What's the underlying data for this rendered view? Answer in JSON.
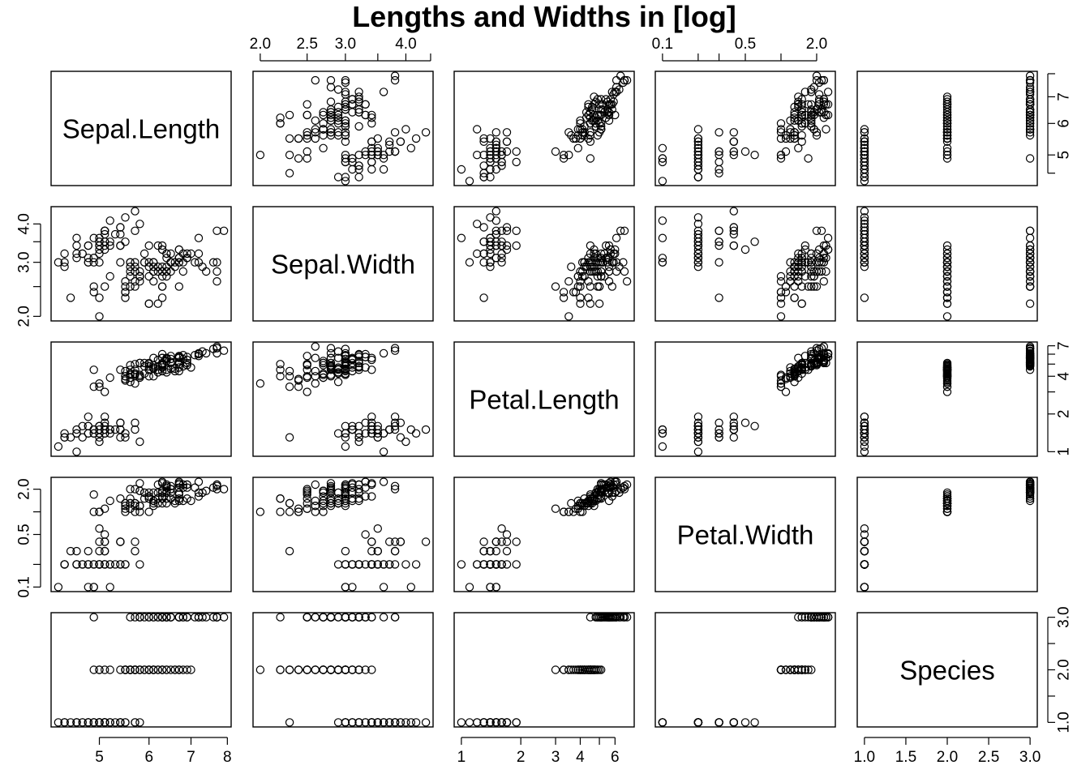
{
  "chart_data": {
    "type": "scatter",
    "title": "Lengths and Widths in [log]",
    "log_variables": [
      "Sepal.Length",
      "Sepal.Width",
      "Petal.Length",
      "Petal.Width"
    ],
    "variables": [
      {
        "name": "Sepal.Length",
        "range": [
          4.3,
          7.9
        ],
        "log": true,
        "ticks": [
          5,
          6,
          7,
          8
        ],
        "tick_labels": [
          "5",
          "6",
          "7",
          "8"
        ],
        "axis_side": "bottom"
      },
      {
        "name": "Sepal.Width",
        "range": [
          2.0,
          4.4
        ],
        "log": true,
        "ticks": [
          2.0,
          2.5,
          3.0,
          3.5,
          4.0,
          4.5
        ],
        "tick_labels": [
          "2.0",
          "2.5",
          "3.0",
          "",
          "4.0",
          ""
        ],
        "axis_side": "top"
      },
      {
        "name": "Petal.Length",
        "range": [
          1.0,
          6.9
        ],
        "log": true,
        "ticks": [
          1,
          2,
          3,
          4,
          5,
          6
        ],
        "tick_labels": [
          "1",
          "2",
          "3",
          "4",
          "",
          "6"
        ],
        "axis_side": "bottom"
      },
      {
        "name": "Petal.Width",
        "range": [
          0.1,
          2.5
        ],
        "log": true,
        "ticks": [
          0.1,
          0.2,
          0.3,
          0.5,
          1.0,
          2.0
        ],
        "tick_labels": [
          "0.1",
          "",
          "",
          "0.5",
          "",
          "2.0"
        ],
        "axis_side": "top"
      },
      {
        "name": "Species",
        "range": [
          1,
          3
        ],
        "log": false,
        "ticks": [
          1.0,
          1.5,
          2.0,
          2.5,
          3.0
        ],
        "tick_labels": [
          "1.0",
          "1.5",
          "2.0",
          "2.5",
          "3.0"
        ],
        "axis_side": "bottom"
      }
    ],
    "row_axes": [
      {
        "row": 0,
        "side": "right",
        "ticks": [
          4.5,
          5,
          6,
          7,
          8
        ],
        "tick_labels": [
          "",
          "5",
          "6",
          "7",
          ""
        ]
      },
      {
        "row": 1,
        "side": "left",
        "ticks": [
          2.0,
          2.5,
          3.0,
          3.5,
          4.0
        ],
        "tick_labels": [
          "2.0",
          "",
          "3.0",
          "",
          "4.0"
        ]
      },
      {
        "row": 2,
        "side": "right",
        "ticks": [
          1,
          2,
          3,
          4,
          5,
          6,
          7
        ],
        "tick_labels": [
          "1",
          "2",
          "",
          "4",
          "",
          "",
          "7"
        ]
      },
      {
        "row": 3,
        "side": "left",
        "ticks": [
          0.1,
          0.2,
          0.5,
          1.0,
          2.0
        ],
        "tick_labels": [
          "0.1",
          "",
          "0.5",
          "",
          "2.0"
        ]
      },
      {
        "row": 4,
        "side": "right",
        "ticks": [
          1.0,
          1.5,
          2.0,
          2.5,
          3.0
        ],
        "tick_labels": [
          "1.0",
          "",
          "2.0",
          "",
          "3.0"
        ]
      }
    ],
    "observations": {
      "columns": [
        "Sepal.Length",
        "Sepal.Width",
        "Petal.Length",
        "Petal.Width",
        "Species"
      ],
      "rows": [
        [
          5.1,
          3.5,
          1.4,
          0.2,
          1
        ],
        [
          4.9,
          3.0,
          1.4,
          0.2,
          1
        ],
        [
          4.7,
          3.2,
          1.3,
          0.2,
          1
        ],
        [
          4.6,
          3.1,
          1.5,
          0.2,
          1
        ],
        [
          5.0,
          3.6,
          1.4,
          0.2,
          1
        ],
        [
          5.4,
          3.9,
          1.7,
          0.4,
          1
        ],
        [
          4.6,
          3.4,
          1.4,
          0.3,
          1
        ],
        [
          5.0,
          3.4,
          1.5,
          0.2,
          1
        ],
        [
          4.4,
          2.9,
          1.4,
          0.2,
          1
        ],
        [
          4.9,
          3.1,
          1.5,
          0.1,
          1
        ],
        [
          5.4,
          3.7,
          1.5,
          0.2,
          1
        ],
        [
          4.8,
          3.4,
          1.6,
          0.2,
          1
        ],
        [
          4.8,
          3.0,
          1.4,
          0.1,
          1
        ],
        [
          4.3,
          3.0,
          1.1,
          0.1,
          1
        ],
        [
          5.8,
          4.0,
          1.2,
          0.2,
          1
        ],
        [
          5.7,
          4.4,
          1.5,
          0.4,
          1
        ],
        [
          5.4,
          3.9,
          1.3,
          0.4,
          1
        ],
        [
          5.1,
          3.5,
          1.4,
          0.3,
          1
        ],
        [
          5.7,
          3.8,
          1.7,
          0.3,
          1
        ],
        [
          5.1,
          3.8,
          1.5,
          0.3,
          1
        ],
        [
          5.4,
          3.4,
          1.7,
          0.2,
          1
        ],
        [
          5.1,
          3.7,
          1.5,
          0.4,
          1
        ],
        [
          4.6,
          3.6,
          1.0,
          0.2,
          1
        ],
        [
          5.1,
          3.3,
          1.7,
          0.5,
          1
        ],
        [
          4.8,
          3.4,
          1.9,
          0.2,
          1
        ],
        [
          5.0,
          3.0,
          1.6,
          0.2,
          1
        ],
        [
          5.0,
          3.4,
          1.6,
          0.4,
          1
        ],
        [
          5.2,
          3.5,
          1.5,
          0.2,
          1
        ],
        [
          5.2,
          3.4,
          1.4,
          0.2,
          1
        ],
        [
          4.7,
          3.2,
          1.6,
          0.2,
          1
        ],
        [
          4.8,
          3.1,
          1.6,
          0.2,
          1
        ],
        [
          5.4,
          3.4,
          1.5,
          0.4,
          1
        ],
        [
          5.2,
          4.1,
          1.5,
          0.1,
          1
        ],
        [
          5.5,
          4.2,
          1.4,
          0.2,
          1
        ],
        [
          4.9,
          3.1,
          1.5,
          0.2,
          1
        ],
        [
          5.0,
          3.2,
          1.2,
          0.2,
          1
        ],
        [
          5.5,
          3.5,
          1.3,
          0.2,
          1
        ],
        [
          4.9,
          3.6,
          1.4,
          0.1,
          1
        ],
        [
          4.4,
          3.0,
          1.3,
          0.2,
          1
        ],
        [
          5.1,
          3.4,
          1.5,
          0.2,
          1
        ],
        [
          5.0,
          3.5,
          1.3,
          0.3,
          1
        ],
        [
          4.5,
          2.3,
          1.3,
          0.3,
          1
        ],
        [
          4.4,
          3.2,
          1.3,
          0.2,
          1
        ],
        [
          5.0,
          3.5,
          1.6,
          0.6,
          1
        ],
        [
          5.1,
          3.8,
          1.9,
          0.4,
          1
        ],
        [
          4.8,
          3.0,
          1.4,
          0.3,
          1
        ],
        [
          5.1,
          3.8,
          1.6,
          0.2,
          1
        ],
        [
          4.6,
          3.2,
          1.4,
          0.2,
          1
        ],
        [
          5.3,
          3.7,
          1.5,
          0.2,
          1
        ],
        [
          5.0,
          3.3,
          1.4,
          0.2,
          1
        ],
        [
          7.0,
          3.2,
          4.7,
          1.4,
          2
        ],
        [
          6.4,
          3.2,
          4.5,
          1.5,
          2
        ],
        [
          6.9,
          3.1,
          4.9,
          1.5,
          2
        ],
        [
          5.5,
          2.3,
          4.0,
          1.3,
          2
        ],
        [
          6.5,
          2.8,
          4.6,
          1.5,
          2
        ],
        [
          5.7,
          2.8,
          4.5,
          1.3,
          2
        ],
        [
          6.3,
          3.3,
          4.7,
          1.6,
          2
        ],
        [
          4.9,
          2.4,
          3.3,
          1.0,
          2
        ],
        [
          6.6,
          2.9,
          4.6,
          1.3,
          2
        ],
        [
          5.2,
          2.7,
          3.9,
          1.4,
          2
        ],
        [
          5.0,
          2.0,
          3.5,
          1.0,
          2
        ],
        [
          5.9,
          3.0,
          4.2,
          1.5,
          2
        ],
        [
          6.0,
          2.2,
          4.0,
          1.0,
          2
        ],
        [
          6.1,
          2.9,
          4.7,
          1.4,
          2
        ],
        [
          5.6,
          2.9,
          3.6,
          1.3,
          2
        ],
        [
          6.7,
          3.1,
          4.4,
          1.4,
          2
        ],
        [
          5.6,
          3.0,
          4.5,
          1.5,
          2
        ],
        [
          5.8,
          2.7,
          4.1,
          1.0,
          2
        ],
        [
          6.2,
          2.2,
          4.5,
          1.5,
          2
        ],
        [
          5.6,
          2.5,
          3.9,
          1.1,
          2
        ],
        [
          5.9,
          3.2,
          4.8,
          1.8,
          2
        ],
        [
          6.1,
          2.8,
          4.0,
          1.3,
          2
        ],
        [
          6.3,
          2.5,
          4.9,
          1.5,
          2
        ],
        [
          6.1,
          2.8,
          4.7,
          1.2,
          2
        ],
        [
          6.4,
          2.9,
          4.3,
          1.3,
          2
        ],
        [
          6.6,
          3.0,
          4.4,
          1.4,
          2
        ],
        [
          6.8,
          2.8,
          4.8,
          1.4,
          2
        ],
        [
          6.7,
          3.0,
          5.0,
          1.7,
          2
        ],
        [
          6.0,
          2.9,
          4.5,
          1.5,
          2
        ],
        [
          5.7,
          2.6,
          3.5,
          1.0,
          2
        ],
        [
          5.5,
          2.4,
          3.8,
          1.1,
          2
        ],
        [
          5.5,
          2.4,
          3.7,
          1.0,
          2
        ],
        [
          5.8,
          2.7,
          3.9,
          1.2,
          2
        ],
        [
          6.0,
          2.7,
          5.1,
          1.6,
          2
        ],
        [
          5.4,
          3.0,
          4.5,
          1.5,
          2
        ],
        [
          6.0,
          3.4,
          4.5,
          1.6,
          2
        ],
        [
          6.7,
          3.1,
          4.7,
          1.5,
          2
        ],
        [
          6.3,
          2.3,
          4.4,
          1.3,
          2
        ],
        [
          5.6,
          3.0,
          4.1,
          1.3,
          2
        ],
        [
          5.5,
          2.5,
          4.0,
          1.3,
          2
        ],
        [
          5.5,
          2.6,
          4.4,
          1.2,
          2
        ],
        [
          6.1,
          3.0,
          4.6,
          1.4,
          2
        ],
        [
          5.8,
          2.6,
          4.0,
          1.2,
          2
        ],
        [
          5.0,
          2.3,
          3.3,
          1.0,
          2
        ],
        [
          5.6,
          2.7,
          4.2,
          1.3,
          2
        ],
        [
          5.7,
          3.0,
          4.2,
          1.2,
          2
        ],
        [
          5.7,
          2.9,
          4.2,
          1.3,
          2
        ],
        [
          6.2,
          2.9,
          4.3,
          1.3,
          2
        ],
        [
          5.1,
          2.5,
          3.0,
          1.1,
          2
        ],
        [
          5.7,
          2.8,
          4.1,
          1.3,
          2
        ],
        [
          6.3,
          3.3,
          6.0,
          2.5,
          3
        ],
        [
          5.8,
          2.7,
          5.1,
          1.9,
          3
        ],
        [
          7.1,
          3.0,
          5.9,
          2.1,
          3
        ],
        [
          6.3,
          2.9,
          5.6,
          1.8,
          3
        ],
        [
          6.5,
          3.0,
          5.8,
          2.2,
          3
        ],
        [
          7.6,
          3.0,
          6.6,
          2.1,
          3
        ],
        [
          4.9,
          2.5,
          4.5,
          1.7,
          3
        ],
        [
          7.3,
          2.9,
          6.3,
          1.8,
          3
        ],
        [
          6.7,
          2.5,
          5.8,
          1.8,
          3
        ],
        [
          7.2,
          3.6,
          6.1,
          2.5,
          3
        ],
        [
          6.5,
          3.2,
          5.1,
          2.0,
          3
        ],
        [
          6.4,
          2.7,
          5.3,
          1.9,
          3
        ],
        [
          6.8,
          3.0,
          5.5,
          2.1,
          3
        ],
        [
          5.7,
          2.5,
          5.0,
          2.0,
          3
        ],
        [
          5.8,
          2.8,
          5.1,
          2.4,
          3
        ],
        [
          6.4,
          3.2,
          5.3,
          2.3,
          3
        ],
        [
          6.5,
          3.0,
          5.5,
          1.8,
          3
        ],
        [
          7.7,
          3.8,
          6.7,
          2.2,
          3
        ],
        [
          7.7,
          2.6,
          6.9,
          2.3,
          3
        ],
        [
          6.0,
          2.2,
          5.0,
          1.5,
          3
        ],
        [
          6.9,
          3.2,
          5.7,
          2.3,
          3
        ],
        [
          5.6,
          2.8,
          4.9,
          2.0,
          3
        ],
        [
          7.7,
          2.8,
          6.7,
          2.0,
          3
        ],
        [
          6.3,
          2.7,
          4.9,
          1.8,
          3
        ],
        [
          6.7,
          3.3,
          5.7,
          2.1,
          3
        ],
        [
          7.2,
          3.2,
          6.0,
          1.8,
          3
        ],
        [
          6.2,
          2.8,
          4.8,
          1.8,
          3
        ],
        [
          6.1,
          3.0,
          4.9,
          1.8,
          3
        ],
        [
          6.4,
          2.8,
          5.6,
          2.1,
          3
        ],
        [
          7.2,
          3.0,
          5.8,
          1.6,
          3
        ],
        [
          7.4,
          2.8,
          6.1,
          1.9,
          3
        ],
        [
          7.9,
          3.8,
          6.4,
          2.0,
          3
        ],
        [
          6.4,
          2.8,
          5.6,
          2.2,
          3
        ],
        [
          6.3,
          2.8,
          5.1,
          1.5,
          3
        ],
        [
          6.1,
          2.6,
          5.6,
          1.4,
          3
        ],
        [
          7.7,
          3.0,
          6.1,
          2.3,
          3
        ],
        [
          6.3,
          3.4,
          5.6,
          2.4,
          3
        ],
        [
          6.4,
          3.1,
          5.5,
          1.8,
          3
        ],
        [
          6.0,
          3.0,
          4.8,
          1.8,
          3
        ],
        [
          6.9,
          3.1,
          5.4,
          2.1,
          3
        ],
        [
          6.7,
          3.1,
          5.6,
          2.4,
          3
        ],
        [
          6.9,
          3.1,
          5.1,
          2.3,
          3
        ],
        [
          5.8,
          2.7,
          5.1,
          1.9,
          3
        ],
        [
          6.8,
          3.2,
          5.9,
          2.3,
          3
        ],
        [
          6.7,
          3.3,
          5.7,
          2.5,
          3
        ],
        [
          6.7,
          3.0,
          5.2,
          2.3,
          3
        ],
        [
          6.3,
          2.5,
          5.0,
          1.9,
          3
        ],
        [
          6.5,
          3.0,
          5.2,
          2.0,
          3
        ],
        [
          6.2,
          3.4,
          5.4,
          2.3,
          3
        ],
        [
          5.9,
          3.0,
          5.1,
          1.8,
          3
        ]
      ]
    }
  }
}
